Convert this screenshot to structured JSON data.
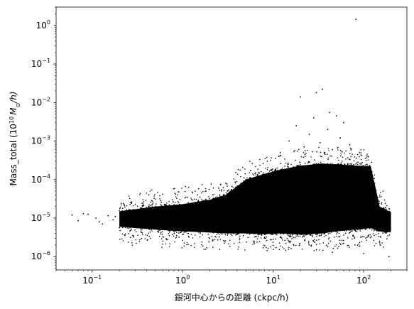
{
  "chart_data": {
    "type": "scatter",
    "title": "",
    "xlabel": "銀河中心からの距離 (ckpc/h)",
    "ylabel_prefix": "Mass_total (10",
    "ylabel_exp": "10",
    "ylabel_unit": "M",
    "ylabel_sub": "⊙",
    "ylabel_suffix": "/h)",
    "x_scale": "log",
    "y_scale": "log",
    "xlim": [
      0.04,
      300
    ],
    "ylim": [
      4.5e-07,
      3.0
    ],
    "grid": false,
    "marker_color": "#000000",
    "x_ticks": [
      {
        "value": 0.1,
        "base": "10",
        "exp": "−1"
      },
      {
        "value": 1,
        "base": "10",
        "exp": "0"
      },
      {
        "value": 10,
        "base": "10",
        "exp": "1"
      },
      {
        "value": 100,
        "base": "10",
        "exp": "2"
      }
    ],
    "y_ticks": [
      {
        "value": 1e-06,
        "base": "10",
        "exp": "−6"
      },
      {
        "value": 1e-05,
        "base": "10",
        "exp": "−5"
      },
      {
        "value": 0.0001,
        "base": "10",
        "exp": "−4"
      },
      {
        "value": 0.001,
        "base": "10",
        "exp": "−3"
      },
      {
        "value": 0.01,
        "base": "10",
        "exp": "−2"
      },
      {
        "value": 0.1,
        "base": "10",
        "exp": "−1"
      },
      {
        "value": 1,
        "base": "10",
        "exp": "0"
      }
    ],
    "envelope": {
      "x": [
        0.2,
        0.3,
        0.5,
        1,
        2,
        3,
        5,
        8,
        12,
        20,
        35,
        50,
        80,
        120,
        150,
        180,
        200
      ],
      "upper": [
        1.5e-05,
        1.7e-05,
        2e-05,
        2.3e-05,
        3e-05,
        4e-05,
        0.0001,
        0.00014,
        0.00018,
        0.00023,
        0.00026,
        0.00025,
        0.00023,
        0.00022,
        2e-05,
        1.6e-05,
        1.4e-05
      ],
      "lower": [
        6e-06,
        5.5e-06,
        5e-06,
        4.5e-06,
        4.2e-06,
        4e-06,
        4e-06,
        3.8e-06,
        4e-06,
        3.7e-06,
        4e-06,
        4.5e-06,
        5e-06,
        5.5e-06,
        4.5e-06,
        4.2e-06,
        4.5e-06
      ]
    },
    "points": [
      {
        "x": 82,
        "y": 1.45
      },
      {
        "x": 35,
        "y": 0.022
      },
      {
        "x": 20,
        "y": 0.014
      },
      {
        "x": 30,
        "y": 0.018
      },
      {
        "x": 42,
        "y": 0.0055
      },
      {
        "x": 50,
        "y": 0.0045
      },
      {
        "x": 28,
        "y": 0.004
      },
      {
        "x": 60,
        "y": 0.003
      },
      {
        "x": 18,
        "y": 0.0025
      },
      {
        "x": 40,
        "y": 0.002
      },
      {
        "x": 25,
        "y": 0.0015
      },
      {
        "x": 55,
        "y": 0.0012
      },
      {
        "x": 15,
        "y": 0.001
      },
      {
        "x": 33,
        "y": 0.0009
      },
      {
        "x": 70,
        "y": 0.0008
      },
      {
        "x": 22,
        "y": 0.0007
      },
      {
        "x": 45,
        "y": 0.0006
      },
      {
        "x": 12,
        "y": 0.0005
      },
      {
        "x": 90,
        "y": 0.0005
      },
      {
        "x": 3,
        "y": 8e-05
      },
      {
        "x": 2.5,
        "y": 6e-05
      },
      {
        "x": 0.06,
        "y": 1.2e-05
      },
      {
        "x": 0.07,
        "y": 8.5e-06
      },
      {
        "x": 0.08,
        "y": 1.3e-05
      },
      {
        "x": 0.09,
        "y": 1.25e-05
      },
      {
        "x": 0.11,
        "y": 1e-05
      },
      {
        "x": 0.12,
        "y": 8e-06
      },
      {
        "x": 0.13,
        "y": 7e-06
      },
      {
        "x": 0.15,
        "y": 1.15e-05
      },
      {
        "x": 0.17,
        "y": 9e-06
      },
      {
        "x": 0.18,
        "y": 1.1e-05
      },
      {
        "x": 30,
        "y": 1.5e-06
      },
      {
        "x": 40,
        "y": 1.8e-06
      },
      {
        "x": 25,
        "y": 2e-06
      },
      {
        "x": 60,
        "y": 2.2e-06
      },
      {
        "x": 15,
        "y": 2.5e-06
      },
      {
        "x": 80,
        "y": 2e-06
      },
      {
        "x": 100,
        "y": 1.2e-06
      },
      {
        "x": 150,
        "y": 2.5e-06
      },
      {
        "x": 190,
        "y": 1e-06
      },
      {
        "x": 45,
        "y": 1.3e-06
      },
      {
        "x": 10,
        "y": 2.8e-06
      },
      {
        "x": 8,
        "y": 3e-06
      }
    ]
  }
}
